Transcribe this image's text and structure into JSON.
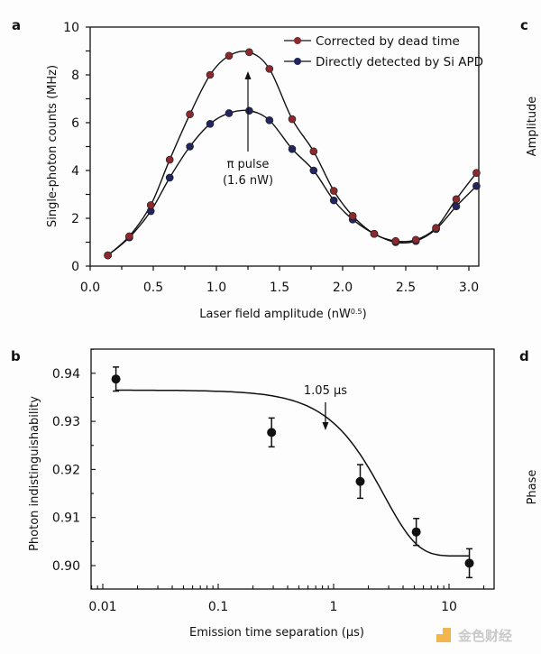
{
  "figure": {
    "panel_letters": [
      "a",
      "b",
      "c",
      "d"
    ],
    "side_labels": {
      "c": "Amplitude",
      "d": "Phase"
    },
    "watermark": "金色财经",
    "colors": {
      "corrected": "#8b2a2e",
      "direct": "#23265c",
      "axis": "#111111",
      "watermark_orange": "#f0a92c"
    }
  },
  "chart_data": [
    {
      "panel": "a",
      "type": "line",
      "title": "",
      "xlabel": "Laser field amplitude (nW",
      "xlabel_sup": "0.5",
      "xlabel_end": ")",
      "ylabel": "Single-photon counts (MHz)",
      "xlim": [
        0.0,
        3.2
      ],
      "ylim": [
        0,
        10
      ],
      "xticks": [
        0.0,
        0.5,
        1.0,
        1.5,
        2.0,
        2.5,
        3.0
      ],
      "xtick_labels": [
        "0.0",
        "0.5",
        "1.0",
        "1.5",
        "2.0",
        "2.5",
        "3.0"
      ],
      "yticks": [
        0,
        2,
        4,
        6,
        8,
        10
      ],
      "ytick_labels": [
        "0",
        "2",
        "4",
        "6",
        "8",
        "10"
      ],
      "grid": false,
      "legend": {
        "placement": "top-right",
        "entries": [
          "Corrected by dead time",
          "Directly detected by Si APD"
        ]
      },
      "annotation": {
        "line1": "π pulse",
        "line2": "(1.6 nW)",
        "x": 1.25
      },
      "x": [
        0.14,
        0.31,
        0.48,
        0.63,
        0.79,
        0.95,
        1.1,
        1.26,
        1.42,
        1.6,
        1.77,
        1.93,
        2.08,
        2.25,
        2.42,
        2.58,
        2.74,
        2.9,
        3.06
      ],
      "series": [
        {
          "name": "Corrected by dead time",
          "values": [
            0.45,
            1.25,
            2.55,
            4.45,
            6.35,
            8.0,
            8.8,
            8.95,
            8.25,
            6.15,
            4.8,
            3.15,
            2.1,
            1.35,
            1.05,
            1.1,
            1.6,
            2.8,
            3.9
          ]
        },
        {
          "name": "Directly detected by Si APD",
          "values": [
            0.45,
            1.2,
            2.3,
            3.7,
            5.0,
            5.95,
            6.4,
            6.5,
            6.1,
            4.9,
            4.0,
            2.75,
            1.95,
            1.35,
            1.0,
            1.05,
            1.55,
            2.5,
            3.35
          ]
        }
      ]
    },
    {
      "panel": "b",
      "type": "scatter",
      "title": "",
      "xlabel": "Emission time separation (µs)",
      "ylabel": "Photon indistinguishability",
      "xscale": "log",
      "xlim": [
        0.008,
        25
      ],
      "ylim": [
        0.8955,
        0.9445
      ],
      "xticks": [
        0.01,
        0.1,
        1,
        10
      ],
      "xtick_labels": [
        "0.01",
        "0.1",
        "1",
        "10"
      ],
      "yticks": [
        0.9,
        0.91,
        0.92,
        0.93,
        0.94
      ],
      "ytick_labels": [
        "0.90",
        "0.91",
        "0.92",
        "0.93",
        "0.94"
      ],
      "grid": false,
      "annotation": {
        "text": "1.05 µs",
        "x": 0.85
      },
      "points": [
        {
          "x": 0.013,
          "y": 0.9388,
          "err": 0.0025
        },
        {
          "x": 0.29,
          "y": 0.9277,
          "err": 0.003
        },
        {
          "x": 1.7,
          "y": 0.9175,
          "err": 0.0035
        },
        {
          "x": 5.2,
          "y": 0.907,
          "err": 0.0028
        },
        {
          "x": 15.0,
          "y": 0.9005,
          "err": 0.003
        }
      ],
      "fit": {
        "y_start": 0.9365,
        "y_end": 0.902,
        "tau_us": 1.05,
        "x_range": [
          0.013,
          15
        ]
      }
    }
  ]
}
